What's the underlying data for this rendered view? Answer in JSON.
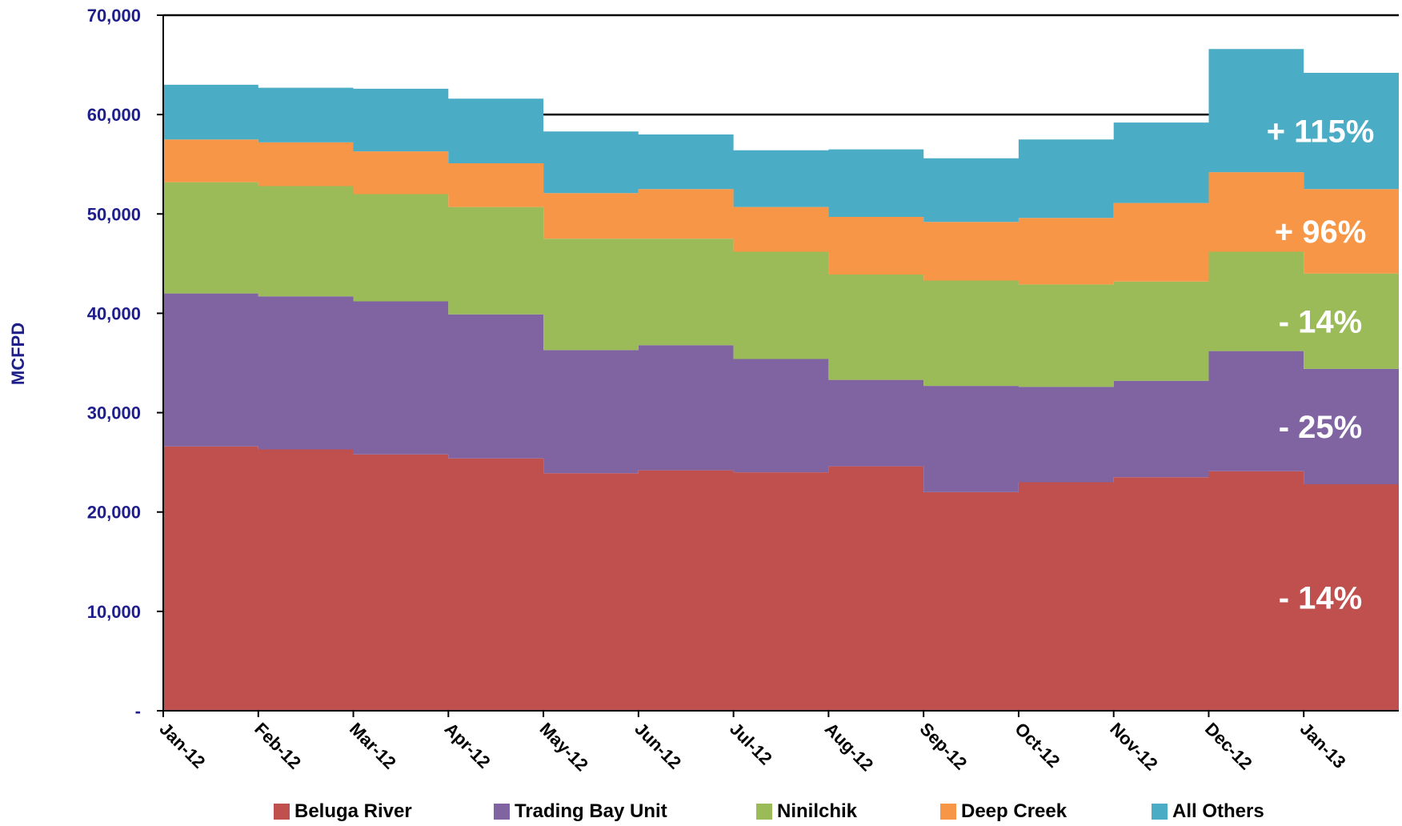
{
  "chart_data": {
    "type": "area",
    "stacked": true,
    "step": true,
    "title": "",
    "xlabel": "",
    "ylabel": "MCFPD",
    "ylim": [
      0,
      70000
    ],
    "yticks": [
      0,
      10000,
      20000,
      30000,
      40000,
      50000,
      60000,
      70000
    ],
    "ytick_labels": [
      "-",
      "10,000",
      "20,000",
      "30,000",
      "40,000",
      "50,000",
      "60,000",
      "70,000"
    ],
    "categories": [
      "Jan-12",
      "Feb-12",
      "Mar-12",
      "Apr-12",
      "May-12",
      "Jun-12",
      "Jul-12",
      "Aug-12",
      "Sep-12",
      "Oct-12",
      "Nov-12",
      "Dec-12",
      "Jan-13"
    ],
    "series": [
      {
        "name": "Beluga River",
        "color": "#c0504d",
        "values": [
          26600,
          26300,
          25800,
          25400,
          23900,
          24200,
          24000,
          24600,
          22000,
          23000,
          23500,
          24100,
          22800
        ]
      },
      {
        "name": "Trading Bay Unit",
        "color": "#8064a2",
        "values": [
          15400,
          15400,
          15400,
          14500,
          12400,
          12600,
          11400,
          8700,
          10700,
          9600,
          9700,
          12100,
          11600
        ]
      },
      {
        "name": "Ninilchik",
        "color": "#9bbb59",
        "values": [
          11200,
          11100,
          10800,
          10800,
          11200,
          10700,
          10800,
          10600,
          10600,
          10300,
          10000,
          10000,
          9600
        ]
      },
      {
        "name": "Deep Creek",
        "color": "#f79646",
        "values": [
          4300,
          4400,
          4300,
          4400,
          4600,
          5000,
          4500,
          5800,
          5900,
          6700,
          7900,
          8000,
          8500
        ]
      },
      {
        "name": "All Others",
        "color": "#4bacc6",
        "values": [
          5500,
          5500,
          6300,
          6500,
          6200,
          5500,
          5700,
          6800,
          6400,
          7900,
          8100,
          12400,
          11700
        ]
      }
    ],
    "reference_lines": [
      {
        "y": 70000,
        "from": "Jan-12",
        "to": "Jan-13"
      },
      {
        "y": 60000,
        "from": "May-12",
        "to": "Dec-12"
      }
    ],
    "annotations": [
      {
        "series": "All Others",
        "text": "+ 115%"
      },
      {
        "series": "Deep Creek",
        "text": "+ 96%"
      },
      {
        "series": "Ninilchik",
        "text": "- 14%"
      },
      {
        "series": "Trading Bay Unit",
        "text": "- 25%"
      },
      {
        "series": "Beluga River",
        "text": "- 14%"
      }
    ],
    "legend_position": "bottom"
  }
}
